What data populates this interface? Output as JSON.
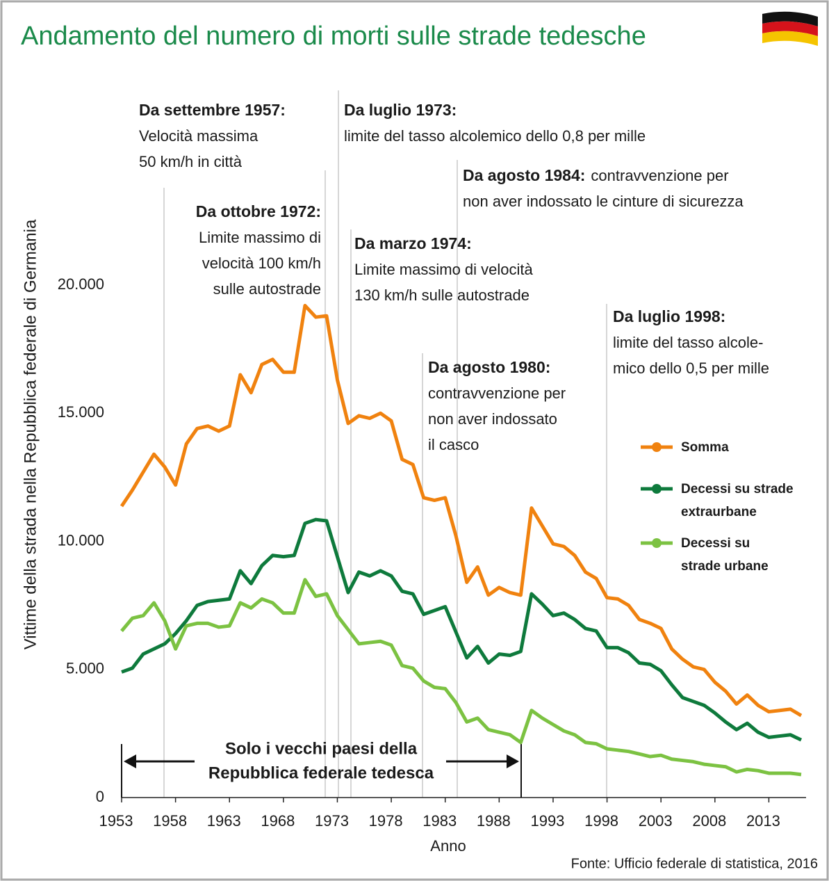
{
  "chart_data": {
    "type": "line",
    "title": "Andamento del numero di morti sulle strade tedesche",
    "y_label": "Vittime della strada nella Repubblica federale di Germania",
    "x_label": "Anno",
    "source": "Fonte: Ufficio federale di statistica, 2016",
    "x": [
      1953,
      1954,
      1955,
      1956,
      1957,
      1958,
      1959,
      1960,
      1961,
      1962,
      1963,
      1964,
      1965,
      1966,
      1967,
      1968,
      1969,
      1970,
      1971,
      1972,
      1973,
      1974,
      1975,
      1976,
      1977,
      1978,
      1979,
      1980,
      1981,
      1982,
      1983,
      1984,
      1985,
      1986,
      1987,
      1988,
      1989,
      1990,
      1991,
      1992,
      1993,
      1994,
      1995,
      1996,
      1997,
      1998,
      1999,
      2000,
      2001,
      2002,
      2003,
      2004,
      2005,
      2006,
      2007,
      2008,
      2009,
      2010,
      2011,
      2012,
      2013,
      2014,
      2015,
      2016
    ],
    "xlim": [
      1953,
      2016
    ],
    "xticks": [
      1953,
      1958,
      1963,
      1968,
      1973,
      1978,
      1983,
      1988,
      1993,
      1998,
      2003,
      2008,
      2013
    ],
    "ylim": [
      0,
      20000
    ],
    "yticks": [
      0,
      {
        "value": 5000,
        "label": "5.000"
      },
      {
        "value": 10000,
        "label": "10.000"
      },
      {
        "value": 15000,
        "label": "15.000"
      },
      {
        "value": 20000,
        "label": "20.000"
      }
    ],
    "series": [
      {
        "name": "Somma",
        "color": "#f0820f",
        "values": [
          11370,
          12000,
          12700,
          13400,
          12900,
          12200,
          13800,
          14400,
          14500,
          14300,
          14500,
          16500,
          15800,
          16900,
          17100,
          16600,
          16600,
          19200,
          18750,
          18800,
          16300,
          14600,
          14900,
          14800,
          15000,
          14700,
          13200,
          13000,
          11700,
          11600,
          11700,
          10200,
          8400,
          9000,
          7900,
          8200,
          8000,
          7900,
          11300,
          10600,
          9900,
          9800,
          9450,
          8800,
          8550,
          7800,
          7750,
          7500,
          6950,
          6800,
          6600,
          5800,
          5400,
          5100,
          5000,
          4500,
          4150,
          3650,
          4000,
          3600,
          3350,
          3400,
          3450,
          3200
        ]
      },
      {
        "name": "Decessi su strade extraurbane",
        "color": "#0e7a3c",
        "values": [
          4900,
          5050,
          5600,
          5800,
          6000,
          6400,
          6900,
          7500,
          7650,
          7700,
          7750,
          8850,
          8350,
          9050,
          9450,
          9400,
          9450,
          10700,
          10850,
          10800,
          9400,
          8000,
          8800,
          8650,
          8850,
          8650,
          8050,
          7950,
          7150,
          7300,
          7450,
          6450,
          5450,
          5900,
          5250,
          5600,
          5550,
          5700,
          7950,
          7550,
          7100,
          7200,
          6950,
          6600,
          6500,
          5850,
          5850,
          5650,
          5250,
          5200,
          4950,
          4400,
          3900,
          3750,
          3600,
          3300,
          2950,
          2650,
          2900,
          2550,
          2350,
          2400,
          2450,
          2250
        ]
      },
      {
        "name": "Decessi su strade urbane",
        "color": "#7cc242",
        "values": [
          6500,
          7000,
          7100,
          7600,
          6900,
          5800,
          6700,
          6800,
          6800,
          6650,
          6700,
          7600,
          7400,
          7750,
          7600,
          7200,
          7200,
          8500,
          7850,
          7950,
          7100,
          6550,
          6000,
          6050,
          6100,
          5950,
          5150,
          5050,
          4550,
          4300,
          4250,
          3700,
          2950,
          3100,
          2650,
          2550,
          2450,
          2150,
          3400,
          3100,
          2850,
          2600,
          2450,
          2150,
          2100,
          1900,
          1850,
          1800,
          1700,
          1600,
          1650,
          1500,
          1450,
          1400,
          1300,
          1250,
          1200,
          1000,
          1100,
          1050,
          950,
          950,
          950,
          900
        ]
      }
    ],
    "annotations": [
      {
        "title": "Da settembre 1957:",
        "lines": [
          "Velocità massima",
          "50 km/h in città"
        ]
      },
      {
        "title": "Da ottobre 1972:",
        "lines": [
          "Limite massimo di",
          "velocità 100 km/h",
          "sulle autostrade"
        ]
      },
      {
        "title": "Da luglio 1973:",
        "lines": [
          "limite del tasso alcolemico dello 0,8 per mille"
        ]
      },
      {
        "title": "Da agosto 1984:",
        "lines": [
          "contravvenzione per",
          "non aver indossato le cinture di sicurezza"
        ]
      },
      {
        "title": "Da marzo 1974:",
        "lines": [
          "Limite massimo di velocità",
          "130 km/h sulle autostrade"
        ]
      },
      {
        "title": "Da agosto 1980:",
        "lines": [
          "contravvenzione per",
          "non aver indossato",
          "il casco"
        ]
      },
      {
        "title": "Da luglio 1998:",
        "lines": [
          "limite del tasso alcole-",
          "mico dello 0,5 per mille"
        ]
      }
    ],
    "bracket": [
      "Solo i vecchi paesi della",
      "Repubblica federale tedesca"
    ]
  }
}
